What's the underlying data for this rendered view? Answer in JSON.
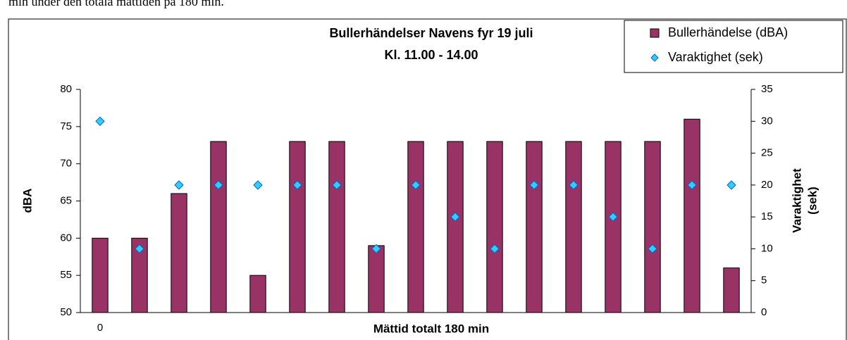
{
  "header_text": "min under den totala mättiden på 180 min.",
  "chart_data": {
    "type": "bar",
    "title": "Bullerhändelser Navens fyr 19 juli",
    "subtitle": "Kl. 11.00 - 14.00",
    "xlabel": "Mättid totalt 180 min",
    "ylabel": "dBA",
    "y2label": [
      "Varaktighet",
      "(sek)"
    ],
    "categories": [
      "0",
      null,
      null,
      null,
      null,
      null,
      null,
      null,
      null,
      null,
      null,
      null,
      null,
      null,
      null,
      null,
      null
    ],
    "series": [
      {
        "name": "Bullerhändelse (dBA)",
        "type": "bar",
        "color": "#993366",
        "values": [
          60,
          60,
          66,
          73,
          55,
          73,
          73,
          59,
          73,
          73,
          73,
          73,
          73,
          73,
          73,
          76,
          56
        ]
      },
      {
        "name": "Varaktighet (sek)",
        "type": "scatter",
        "axis": "y2",
        "color": "#33ccff",
        "values": [
          30,
          10,
          20,
          20,
          20,
          20,
          20,
          10,
          20,
          15,
          10,
          20,
          20,
          15,
          10,
          20,
          20
        ]
      }
    ],
    "ylim": [
      50,
      80
    ],
    "yticks": [
      50,
      55,
      60,
      65,
      70,
      75,
      80
    ],
    "y2lim": [
      0,
      35
    ],
    "y2ticks": [
      0,
      5,
      10,
      15,
      20,
      25,
      30,
      35
    ],
    "legend": "top-right"
  }
}
